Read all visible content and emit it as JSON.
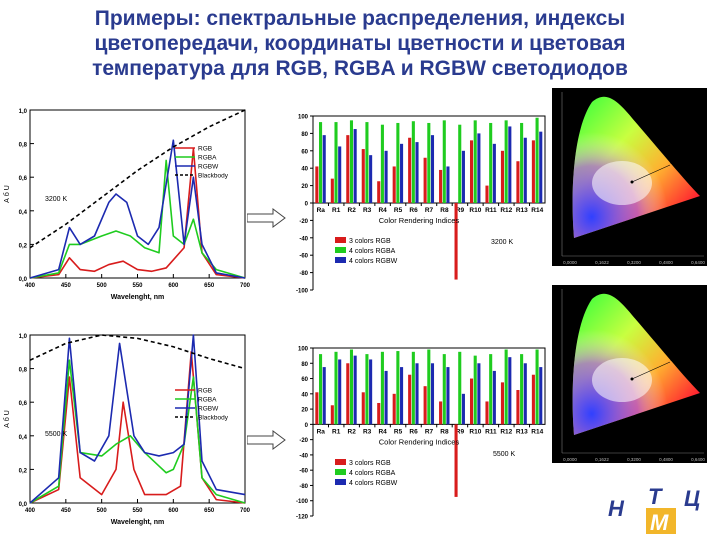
{
  "title": "Примеры: спектральные распределения, индексы цветопередачи, координаты цветности и цветовая температура  для RGB, RGBA и RGBW светодиодов",
  "colors": {
    "title": "#2a3b8f",
    "rgb": "#d81c1c",
    "rgba": "#1fcc1f",
    "rgbw": "#1c2ab0",
    "blackbody": "#000000"
  },
  "chart_data": [
    {
      "type": "line",
      "title": "",
      "annotation": "3200 K",
      "xlabel": "Wavelenght, nm",
      "ylabel": "А б U",
      "xlim": [
        400,
        700
      ],
      "ylim": [
        0,
        1.0
      ],
      "xticks": [
        400,
        450,
        500,
        550,
        600,
        650,
        700
      ],
      "yticks": [
        "0,0",
        "0,2",
        "0,4",
        "0,6",
        "0,8",
        "1,0"
      ],
      "legend": [
        "RGB",
        "RGBA",
        "RGBW",
        "Blackbody"
      ],
      "series": [
        {
          "name": "RGB",
          "x": [
            400,
            440,
            455,
            470,
            490,
            510,
            530,
            550,
            570,
            590,
            615,
            628,
            640,
            660,
            700
          ],
          "y": [
            0.0,
            0.02,
            0.12,
            0.05,
            0.04,
            0.08,
            0.1,
            0.05,
            0.04,
            0.06,
            0.18,
            0.77,
            0.15,
            0.02,
            0.0
          ]
        },
        {
          "name": "RGBA",
          "x": [
            400,
            440,
            455,
            470,
            500,
            520,
            540,
            560,
            580,
            590,
            600,
            615,
            628,
            640,
            660,
            700
          ],
          "y": [
            0.0,
            0.03,
            0.2,
            0.2,
            0.25,
            0.28,
            0.25,
            0.18,
            0.15,
            0.7,
            0.25,
            0.2,
            0.35,
            0.15,
            0.05,
            0.0
          ]
        },
        {
          "name": "RGBW",
          "x": [
            400,
            440,
            455,
            470,
            490,
            510,
            520,
            535,
            550,
            565,
            580,
            600,
            615,
            628,
            640,
            660,
            700
          ],
          "y": [
            0.0,
            0.05,
            0.3,
            0.2,
            0.25,
            0.45,
            0.5,
            0.45,
            0.25,
            0.2,
            0.3,
            0.82,
            0.2,
            0.6,
            0.2,
            0.03,
            0.0
          ]
        },
        {
          "name": "Blackbody",
          "x": [
            400,
            450,
            500,
            550,
            600,
            650,
            700
          ],
          "y": [
            0.18,
            0.32,
            0.48,
            0.64,
            0.78,
            0.9,
            1.0
          ]
        }
      ]
    },
    {
      "type": "bar",
      "annotation": "3200 K",
      "xlabel": "Color Rendering Indices",
      "categories": [
        "Ra",
        "R1",
        "R2",
        "R3",
        "R4",
        "R5",
        "R6",
        "R7",
        "R8",
        "R9",
        "R10",
        "R11",
        "R12",
        "R13",
        "R14"
      ],
      "ylim": [
        -100,
        100
      ],
      "yticks": [
        100,
        80,
        60,
        40,
        20,
        0,
        -20,
        -40,
        -60,
        -80,
        -100
      ],
      "legend": [
        "3 colors RGB",
        "4 colors RGBA",
        "4 colors RGBW"
      ],
      "series": [
        {
          "name": "3 colors RGB",
          "values": [
            42,
            28,
            78,
            62,
            25,
            42,
            75,
            52,
            38,
            -88,
            72,
            20,
            60,
            48,
            72
          ]
        },
        {
          "name": "4 colors RGBA",
          "values": [
            93,
            93,
            95,
            93,
            90,
            92,
            94,
            92,
            95,
            90,
            95,
            92,
            95,
            92,
            98
          ]
        },
        {
          "name": "4 colors RGBW",
          "values": [
            78,
            65,
            85,
            55,
            60,
            68,
            70,
            78,
            42,
            60,
            80,
            68,
            88,
            75,
            82
          ]
        }
      ]
    },
    {
      "type": "line",
      "annotation": "5500 K",
      "xlabel": "Wavelenght, nm",
      "ylabel": "А б U",
      "xlim": [
        400,
        700
      ],
      "ylim": [
        0,
        1.0
      ],
      "xticks": [
        400,
        450,
        500,
        550,
        600,
        650,
        700
      ],
      "yticks": [
        "0,0",
        "0,2",
        "0,4",
        "0,6",
        "0,8",
        "1,0"
      ],
      "legend": [
        "RGB",
        "RGBA",
        "RGBW",
        "Blackbody"
      ],
      "series": [
        {
          "name": "RGB",
          "x": [
            400,
            440,
            455,
            470,
            500,
            520,
            530,
            545,
            560,
            590,
            610,
            625,
            640,
            660,
            700
          ],
          "y": [
            0.0,
            0.08,
            0.75,
            0.15,
            0.05,
            0.2,
            0.6,
            0.2,
            0.05,
            0.05,
            0.1,
            0.9,
            0.15,
            0.02,
            0.0
          ]
        },
        {
          "name": "RGBA",
          "x": [
            400,
            440,
            455,
            470,
            500,
            520,
            540,
            560,
            580,
            590,
            600,
            615,
            628,
            640,
            660,
            700
          ],
          "y": [
            0.0,
            0.1,
            0.85,
            0.3,
            0.28,
            0.35,
            0.4,
            0.3,
            0.22,
            0.18,
            0.2,
            0.35,
            0.75,
            0.15,
            0.05,
            0.0
          ]
        },
        {
          "name": "RGBW",
          "x": [
            400,
            440,
            455,
            470,
            490,
            510,
            525,
            545,
            560,
            580,
            600,
            615,
            628,
            640,
            660,
            700
          ],
          "y": [
            0.0,
            0.15,
            0.98,
            0.3,
            0.25,
            0.4,
            0.95,
            0.4,
            0.3,
            0.28,
            0.3,
            0.35,
            1.0,
            0.25,
            0.08,
            0.05
          ]
        },
        {
          "name": "Blackbody",
          "x": [
            400,
            450,
            500,
            550,
            600,
            650,
            700
          ],
          "y": [
            0.85,
            0.95,
            1.0,
            0.98,
            0.93,
            0.86,
            0.8
          ]
        }
      ]
    },
    {
      "type": "bar",
      "annotation": "5500 K",
      "xlabel": "Color Rendering Indices",
      "categories": [
        "Ra",
        "R1",
        "R2",
        "R3",
        "R4",
        "R5",
        "R6",
        "R7",
        "R8",
        "R9",
        "R10",
        "R11",
        "R12",
        "R13",
        "R14"
      ],
      "ylim": [
        -120,
        100
      ],
      "yticks": [
        100,
        80,
        60,
        40,
        20,
        0,
        -20,
        -40,
        -60,
        -80,
        -100,
        -120
      ],
      "legend": [
        "3 colors RGB",
        "4 colors RGBA",
        "4 colors RGBW"
      ],
      "series": [
        {
          "name": "3 colors RGB",
          "values": [
            42,
            25,
            80,
            42,
            28,
            40,
            65,
            50,
            30,
            -95,
            60,
            30,
            55,
            45,
            65
          ]
        },
        {
          "name": "4 colors RGBA",
          "values": [
            92,
            95,
            98,
            92,
            95,
            96,
            95,
            98,
            92,
            95,
            90,
            92,
            98,
            92,
            98
          ]
        },
        {
          "name": "4 colors RGBW",
          "values": [
            75,
            85,
            90,
            85,
            70,
            75,
            80,
            80,
            75,
            40,
            80,
            70,
            88,
            80,
            75
          ]
        }
      ]
    }
  ],
  "cie": [
    {
      "label": "3200",
      "ticks": [
        "0,0000",
        "0,1622",
        "0,3200",
        "0,4800",
        "0,6400"
      ]
    },
    {
      "label": "5500",
      "ticks": [
        "0,0000",
        "0,1622",
        "0,3200",
        "0,4800",
        "0,6400"
      ]
    }
  ],
  "logo": {
    "n": "Н",
    "t": "Т",
    "c": "Ц",
    "m": "М"
  }
}
